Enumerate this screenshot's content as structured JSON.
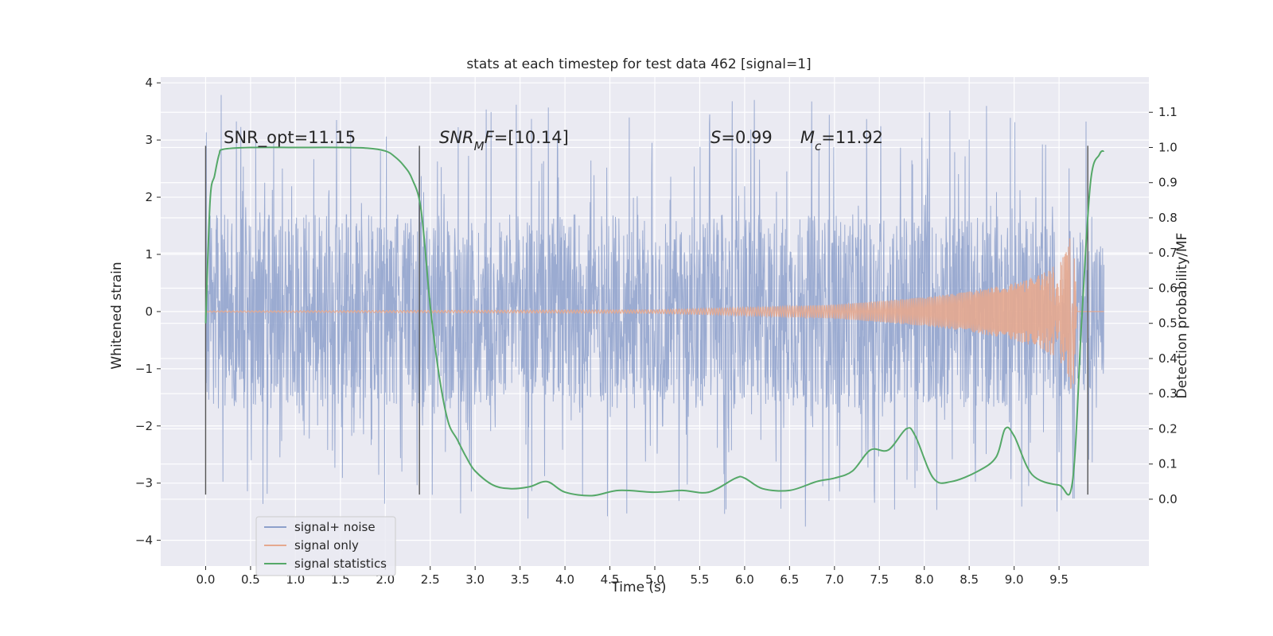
{
  "chart_data": {
    "type": "line",
    "title": "stats at each timestep for test data 462 [signal=1]",
    "xlabel": "Time (s)",
    "ylabel_left": "Whitened strain",
    "ylabel_right": "Detection probability/MF",
    "xlim": [
      -0.5,
      10.5
    ],
    "ylim_left": [
      -4.45,
      4.1
    ],
    "ylim_right": [
      -0.19,
      1.2
    ],
    "x_ticks": [
      "0.0",
      "0.5",
      "1.0",
      "1.5",
      "2.0",
      "2.5",
      "3.0",
      "3.5",
      "4.0",
      "4.5",
      "5.0",
      "5.5",
      "6.0",
      "6.5",
      "7.0",
      "7.5",
      "8.0",
      "8.5",
      "9.0",
      "9.5"
    ],
    "y_ticks_left": [
      "4",
      "3",
      "2",
      "1",
      "0",
      "−1",
      "−2",
      "−3",
      "−4"
    ],
    "y_ticks_right": [
      "1.1",
      "1.0",
      "0.9",
      "0.8",
      "0.7",
      "0.6",
      "0.5",
      "0.4",
      "0.3",
      "0.2",
      "0.1",
      "0.0"
    ],
    "grid": true,
    "legend_position": "lower-left",
    "series": [
      {
        "name": "signal+ noise",
        "axis": "left",
        "color": "#8da0cb",
        "envelope": {
          "x": [
            0.0,
            1.0,
            2.0,
            3.0,
            4.0,
            5.0,
            6.0,
            7.0,
            8.0,
            9.0,
            10.0
          ],
          "typical_abs": [
            1.7,
            1.7,
            1.7,
            1.7,
            1.7,
            1.7,
            1.7,
            1.7,
            1.7,
            1.7,
            1.3
          ],
          "peak_abs": [
            4.0,
            3.8,
            3.6,
            3.7,
            3.6,
            3.6,
            3.7,
            3.8,
            3.6,
            3.6,
            3.6
          ]
        }
      },
      {
        "name": "signal only",
        "axis": "left",
        "color": "#e5a98f",
        "envelope": {
          "x": [
            0.0,
            5.0,
            6.0,
            7.0,
            8.0,
            8.5,
            9.0,
            9.3,
            9.5,
            9.6,
            9.65,
            9.7
          ],
          "amplitude": [
            0.01,
            0.03,
            0.07,
            0.12,
            0.25,
            0.35,
            0.5,
            0.65,
            0.85,
            1.1,
            1.6,
            0.0
          ]
        }
      },
      {
        "name": "signal statistics",
        "axis": "right",
        "color": "#55a868",
        "x": [
          0.0,
          0.05,
          0.1,
          0.15,
          0.2,
          0.5,
          1.0,
          1.5,
          1.8,
          2.0,
          2.1,
          2.2,
          2.3,
          2.4,
          2.5,
          2.6,
          2.7,
          2.8,
          2.9,
          3.0,
          3.2,
          3.4,
          3.6,
          3.8,
          4.0,
          4.3,
          4.6,
          5.0,
          5.3,
          5.6,
          5.9,
          6.0,
          6.2,
          6.5,
          6.8,
          7.0,
          7.2,
          7.4,
          7.6,
          7.8,
          7.9,
          8.1,
          8.3,
          8.6,
          8.8,
          8.9,
          9.0,
          9.2,
          9.5,
          9.65,
          9.75,
          9.85,
          9.95,
          10.0
        ],
        "y": [
          0.5,
          0.85,
          0.92,
          0.98,
          0.995,
          1.0,
          1.0,
          1.0,
          0.998,
          0.99,
          0.975,
          0.95,
          0.91,
          0.82,
          0.55,
          0.35,
          0.22,
          0.17,
          0.12,
          0.08,
          0.04,
          0.03,
          0.035,
          0.05,
          0.02,
          0.01,
          0.025,
          0.02,
          0.025,
          0.02,
          0.06,
          0.06,
          0.03,
          0.025,
          0.05,
          0.06,
          0.08,
          0.14,
          0.14,
          0.2,
          0.18,
          0.06,
          0.05,
          0.08,
          0.12,
          0.2,
          0.18,
          0.07,
          0.04,
          0.05,
          0.5,
          0.9,
          0.98,
          0.99
        ]
      }
    ],
    "vlines": [
      {
        "x": 0.0,
        "y0": -3.2,
        "y1": 2.9
      },
      {
        "x": 2.38,
        "y0": -3.2,
        "y1": 2.9
      },
      {
        "x": 9.82,
        "y0": -3.2,
        "y1": 2.9
      }
    ],
    "annotations": [
      {
        "id": "snr-opt",
        "parts": [
          {
            "text": "SNR_opt=11.15",
            "italic": false
          }
        ],
        "x": 0.2,
        "y": 3.0
      },
      {
        "id": "snr-mf",
        "parts": [
          {
            "text": "SNR",
            "italic": true
          },
          {
            "text": "M",
            "italic": true,
            "sub": true
          },
          {
            "text": "F",
            "italic": true
          },
          {
            "text": "=[10.14]",
            "italic": false
          }
        ],
        "x": 2.6,
        "y": 3.0
      },
      {
        "id": "s-value",
        "parts": [
          {
            "text": "S",
            "italic": true
          },
          {
            "text": "=0.99",
            "italic": false
          }
        ],
        "x": 5.62,
        "y": 3.0
      },
      {
        "id": "mc-value",
        "parts": [
          {
            "text": "M",
            "italic": true
          },
          {
            "text": "c",
            "italic": true,
            "sub": true
          },
          {
            "text": "=11.92",
            "italic": false
          }
        ],
        "x": 6.62,
        "y": 3.0
      }
    ]
  },
  "colors": {
    "axes_face": "#eaeaf2",
    "grid": "#ffffff",
    "vline": "#555555",
    "text": "#262626"
  }
}
